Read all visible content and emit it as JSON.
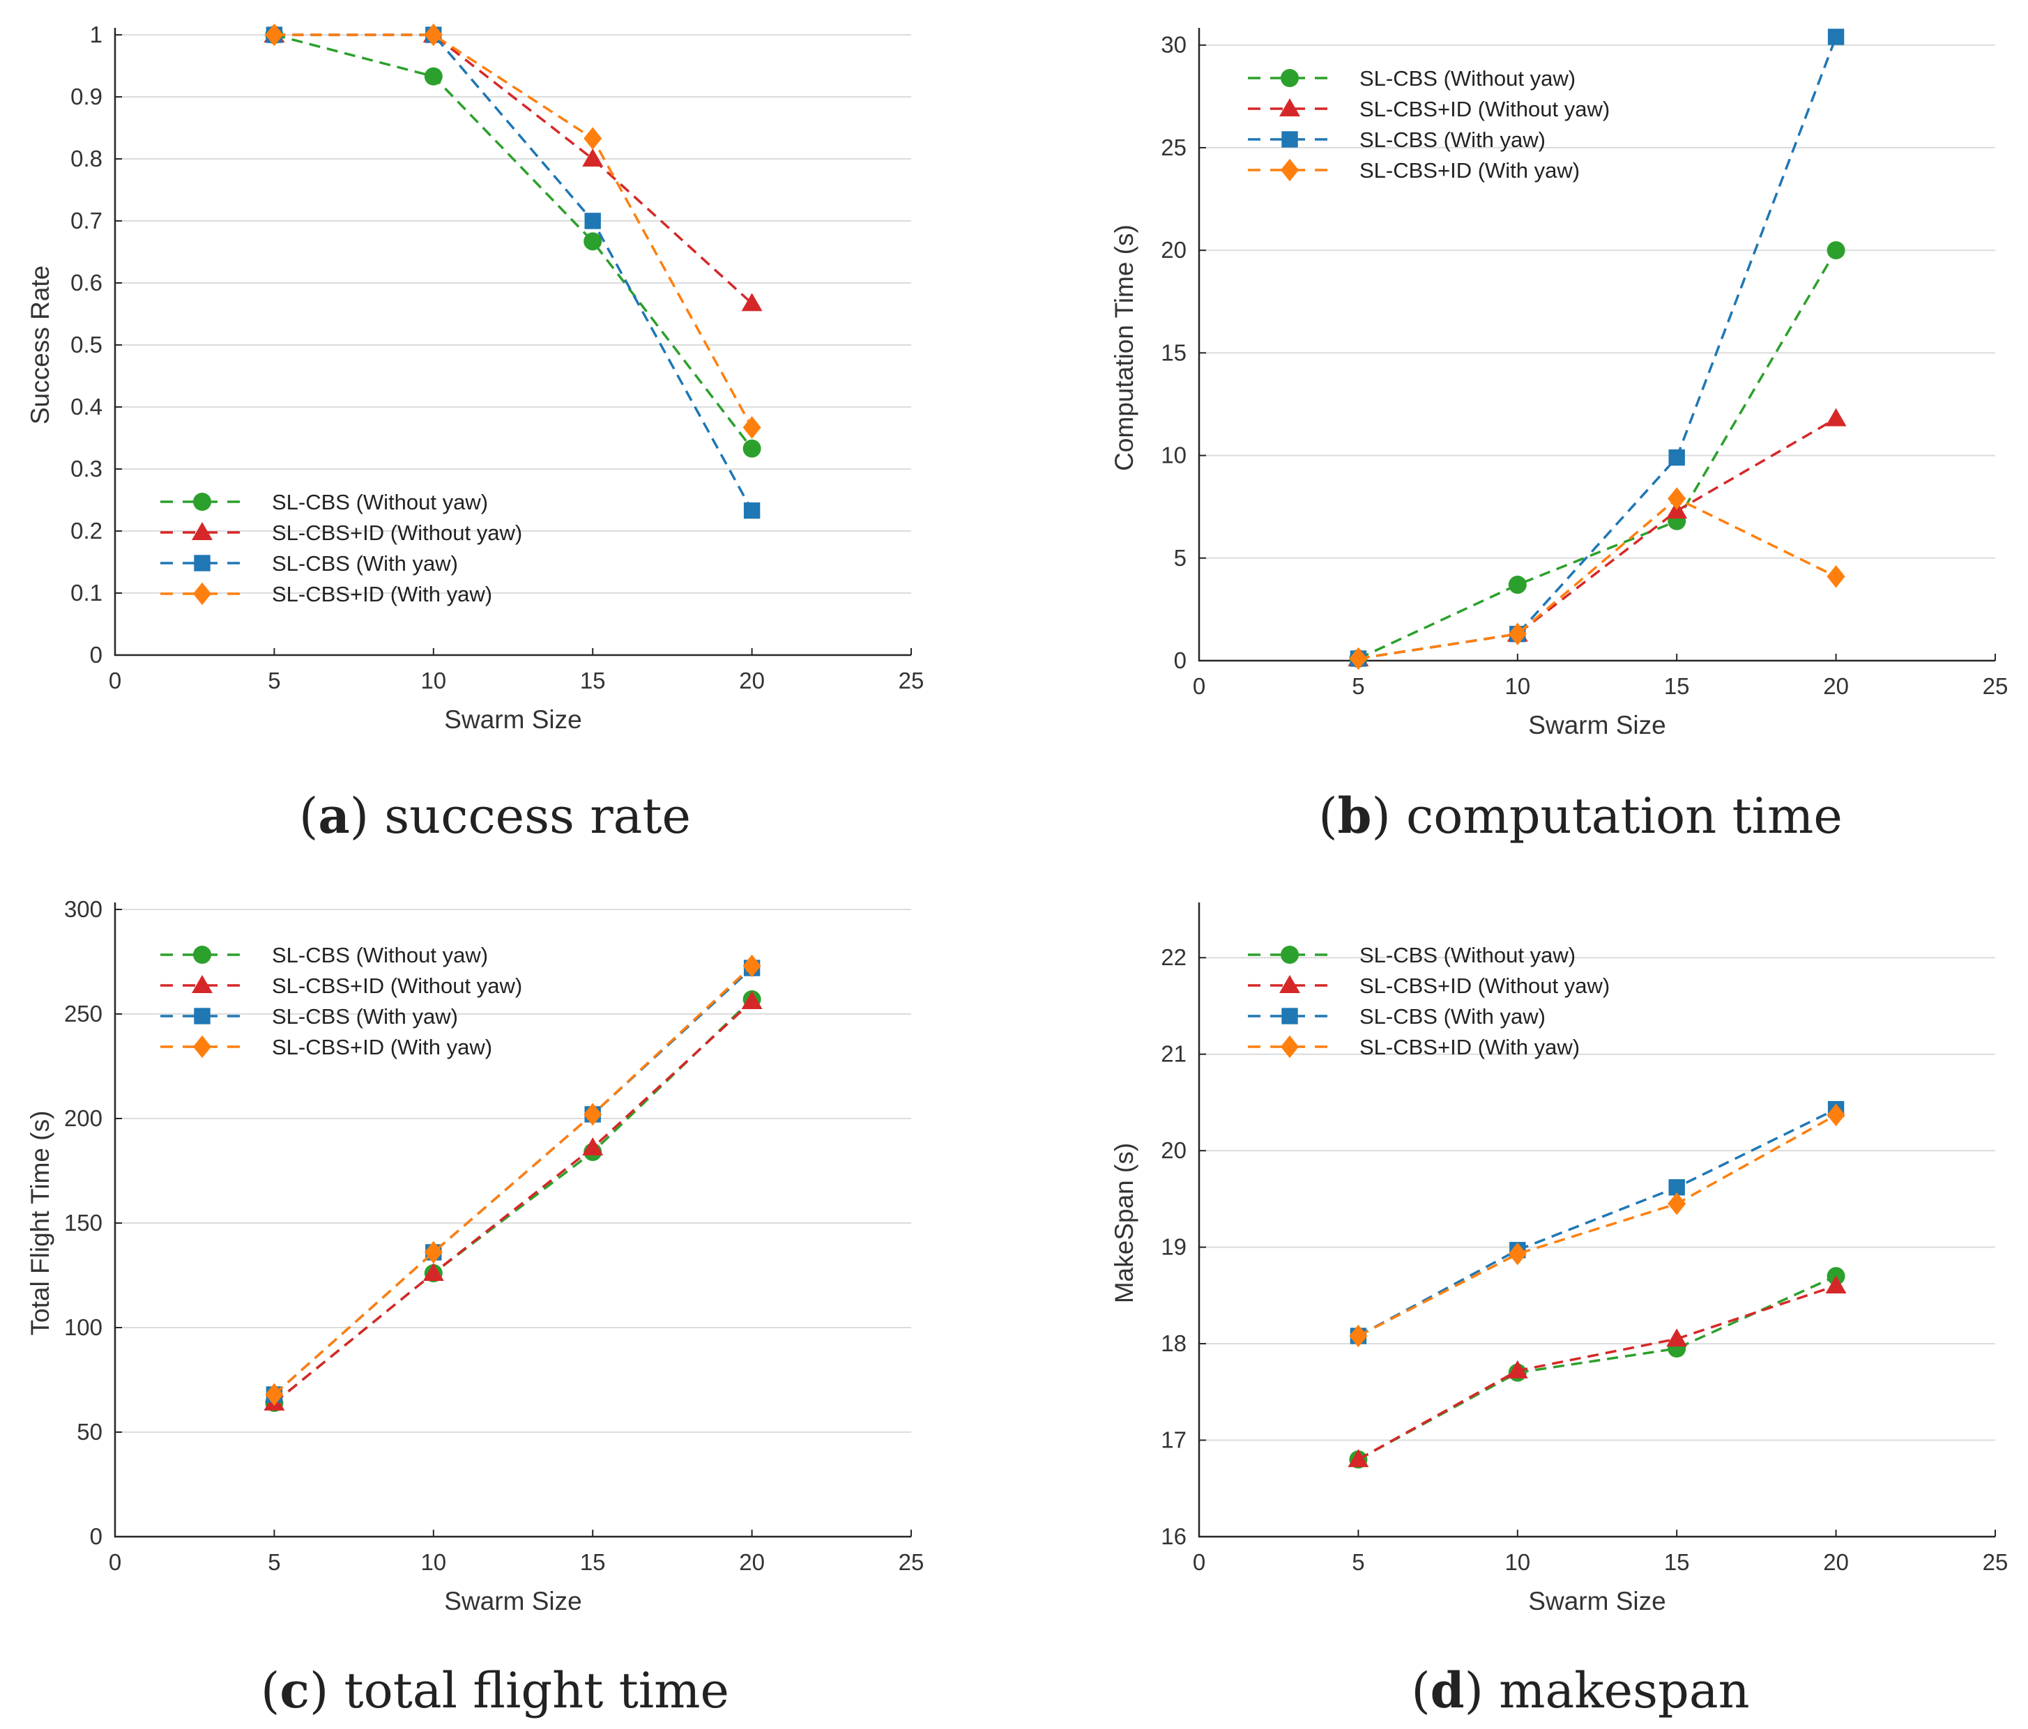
{
  "colors": {
    "SL-CBS (Without yaw)": "#2ca02c",
    "SL-CBS+ID (Without yaw)": "#d62728",
    "SL-CBS (With yaw)": "#1f77b4",
    "SL-CBS+ID (With yaw)": "#ff7f0e"
  },
  "markers": {
    "SL-CBS (Without yaw)": "circle",
    "SL-CBS+ID (Without yaw)": "triangle",
    "SL-CBS (With yaw)": "square",
    "SL-CBS+ID (With yaw)": "diamond"
  },
  "chart_data": [
    {
      "id": "a",
      "type": "line",
      "caption": {
        "letter": "a",
        "text": "success rate"
      },
      "xlabel": "Swarm Size",
      "ylabel": "Success Rate",
      "xlim": [
        0,
        25
      ],
      "ylim": [
        0,
        1
      ],
      "xticks": [
        "0",
        "5",
        "10",
        "15",
        "20",
        "25"
      ],
      "yticks": [
        "0",
        "0.1",
        "0.2",
        "0.3",
        "0.4",
        "0.5",
        "0.6",
        "0.7",
        "0.8",
        "0.9",
        "1"
      ],
      "grid": true,
      "legend_position": "bottom-left",
      "x": [
        5,
        10,
        15,
        20
      ],
      "series": [
        {
          "name": "SL-CBS (Without yaw)",
          "values": [
            1.0,
            0.933,
            0.667,
            0.333
          ]
        },
        {
          "name": "SL-CBS+ID (Without yaw)",
          "values": [
            1.0,
            1.0,
            0.8,
            0.567
          ]
        },
        {
          "name": "SL-CBS (With yaw)",
          "values": [
            1.0,
            1.0,
            0.7,
            0.233
          ]
        },
        {
          "name": "SL-CBS+ID (With yaw)",
          "values": [
            1.0,
            1.0,
            0.833,
            0.367
          ]
        }
      ]
    },
    {
      "id": "b",
      "type": "line",
      "caption": {
        "letter": "b",
        "text": "computation time"
      },
      "xlabel": "Swarm Size",
      "ylabel": "Computation Time (s)",
      "xlim": [
        0,
        25
      ],
      "ylim": [
        0,
        30.5
      ],
      "xticks": [
        "0",
        "5",
        "10",
        "15",
        "20",
        "25"
      ],
      "yticks": [
        "0",
        "5",
        "10",
        "15",
        "20",
        "25",
        "30"
      ],
      "grid": true,
      "legend_position": "top-left",
      "x": [
        5,
        10,
        15,
        20
      ],
      "series": [
        {
          "name": "SL-CBS (Without yaw)",
          "values": [
            0.1,
            3.7,
            6.8,
            20.0
          ]
        },
        {
          "name": "SL-CBS+ID (Without yaw)",
          "values": [
            0.1,
            1.3,
            7.3,
            11.8
          ]
        },
        {
          "name": "SL-CBS (With yaw)",
          "values": [
            0.1,
            1.3,
            9.9,
            30.4
          ]
        },
        {
          "name": "SL-CBS+ID (With yaw)",
          "values": [
            0.1,
            1.3,
            7.9,
            4.1
          ]
        }
      ]
    },
    {
      "id": "c",
      "type": "line",
      "caption": {
        "letter": "c",
        "text": "total flight time"
      },
      "xlabel": "Swarm Size",
      "ylabel": "Total Flight Time (s)",
      "xlim": [
        0,
        25
      ],
      "ylim": [
        0,
        300
      ],
      "xticks": [
        "0",
        "5",
        "10",
        "15",
        "20",
        "25"
      ],
      "yticks": [
        "0",
        "50",
        "100",
        "150",
        "200",
        "250",
        "300"
      ],
      "grid": true,
      "legend_position": "top-left",
      "x": [
        5,
        10,
        15,
        20
      ],
      "series": [
        {
          "name": "SL-CBS (Without yaw)",
          "values": [
            64,
            126,
            184,
            257
          ]
        },
        {
          "name": "SL-CBS+ID (Without yaw)",
          "values": [
            64,
            126,
            186,
            256
          ]
        },
        {
          "name": "SL-CBS (With yaw)",
          "values": [
            68,
            136,
            202,
            272
          ]
        },
        {
          "name": "SL-CBS+ID (With yaw)",
          "values": [
            68,
            136,
            202,
            273
          ]
        }
      ]
    },
    {
      "id": "d",
      "type": "line",
      "caption": {
        "letter": "d",
        "text": "makespan"
      },
      "xlabel": "Swarm Size",
      "ylabel": "MakeSpan (s)",
      "xlim": [
        0,
        25
      ],
      "ylim": [
        16,
        22.5
      ],
      "xticks": [
        "0",
        "5",
        "10",
        "15",
        "20",
        "25"
      ],
      "yticks": [
        "16",
        "17",
        "18",
        "19",
        "20",
        "21",
        "22"
      ],
      "grid": true,
      "legend_position": "top-left",
      "x": [
        5,
        10,
        15,
        20
      ],
      "series": [
        {
          "name": "SL-CBS (Without yaw)",
          "values": [
            16.8,
            17.7,
            17.95,
            18.7
          ]
        },
        {
          "name": "SL-CBS+ID (Without yaw)",
          "values": [
            16.8,
            17.72,
            18.05,
            18.6
          ]
        },
        {
          "name": "SL-CBS (With yaw)",
          "values": [
            18.08,
            18.97,
            19.62,
            20.43
          ]
        },
        {
          "name": "SL-CBS+ID (With yaw)",
          "values": [
            18.08,
            18.93,
            19.45,
            20.37
          ]
        }
      ]
    }
  ]
}
